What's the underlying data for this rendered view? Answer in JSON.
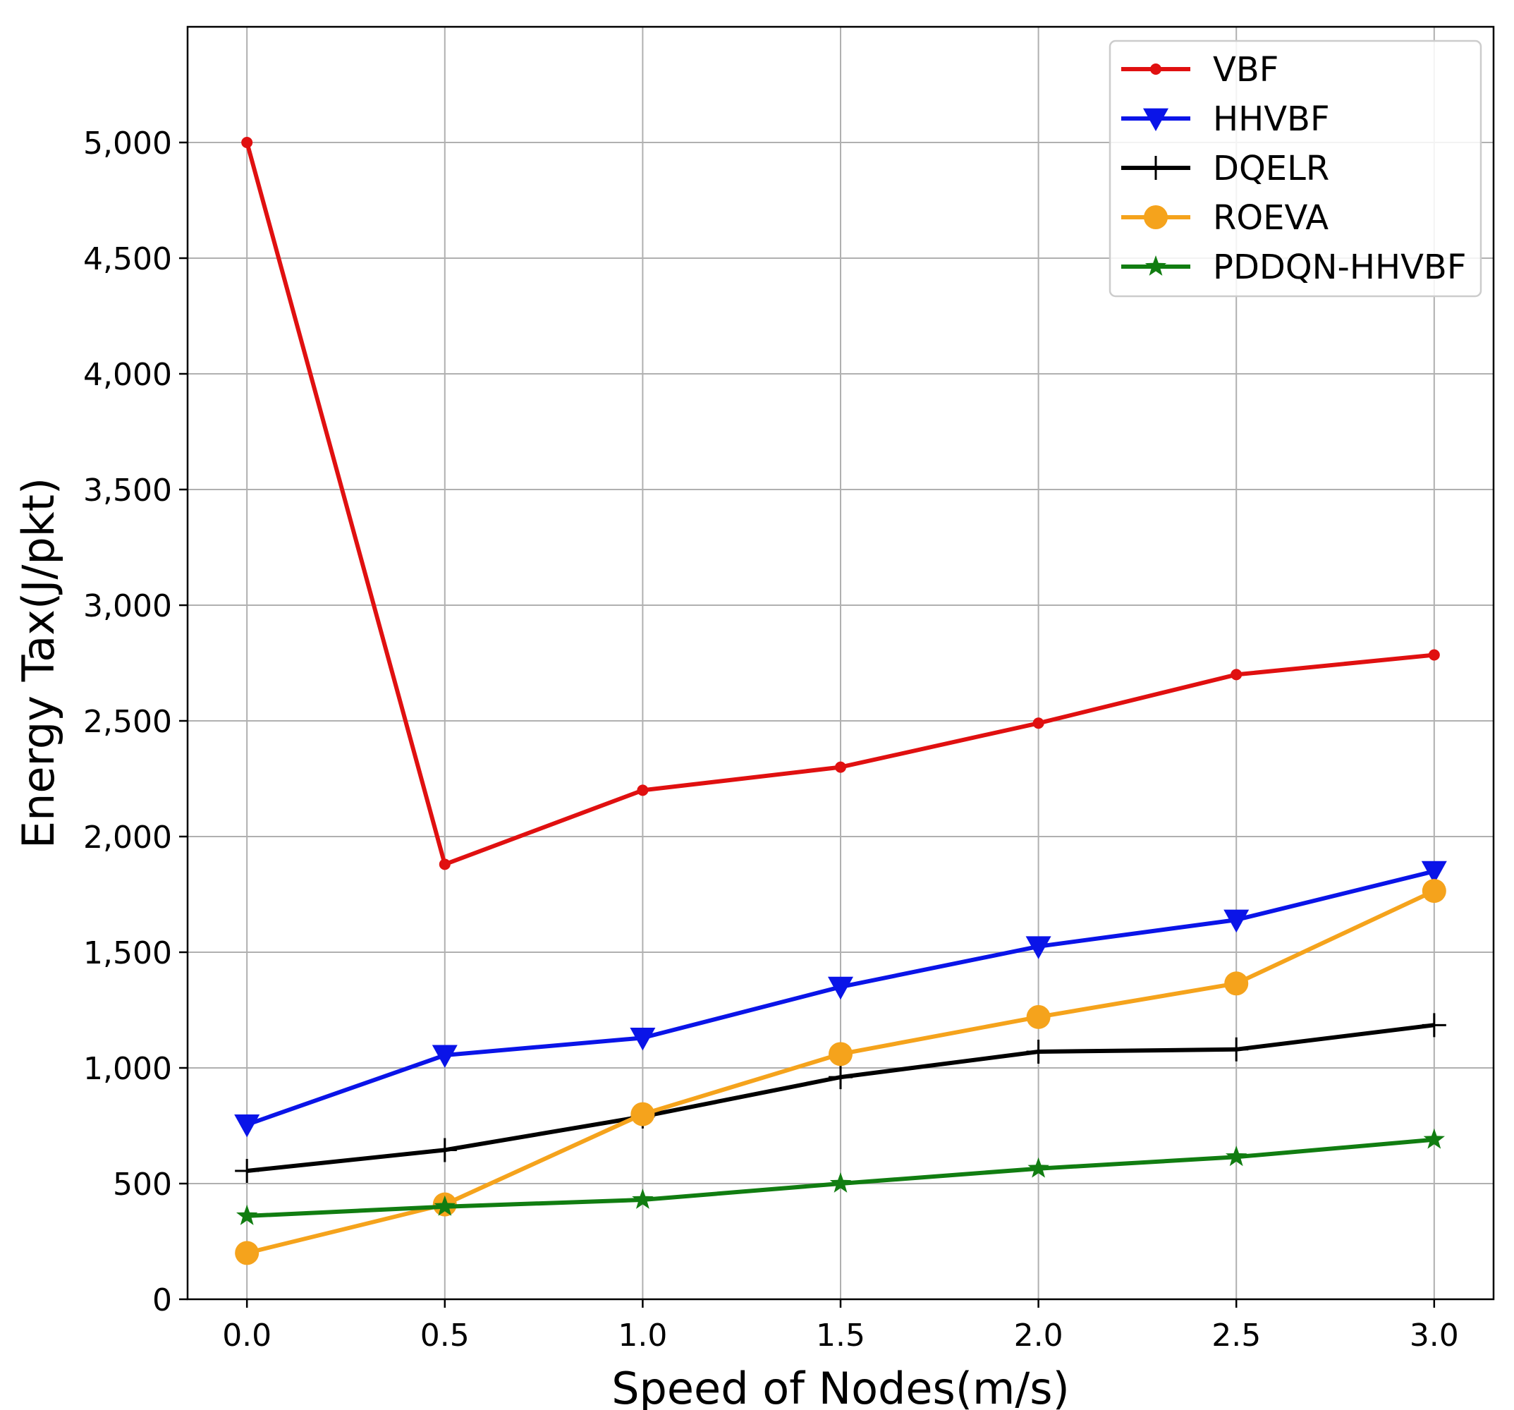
{
  "chart_data": {
    "type": "line",
    "title": "",
    "xlabel": "Speed of Nodes(m/s)",
    "ylabel": "Energy Tax(J/pkt)",
    "x": [
      0.0,
      0.5,
      1.0,
      1.5,
      2.0,
      2.5,
      3.0
    ],
    "xlim": [
      -0.15,
      3.15
    ],
    "ylim": [
      0,
      5500
    ],
    "xticks": [
      0.0,
      0.5,
      1.0,
      1.5,
      2.0,
      2.5,
      3.0
    ],
    "xtick_labels": [
      "0.0",
      "0.5",
      "1.0",
      "1.5",
      "2.0",
      "2.5",
      "3.0"
    ],
    "yticks": [
      0,
      500,
      1000,
      1500,
      2000,
      2500,
      3000,
      3500,
      4000,
      4500,
      5000
    ],
    "ytick_labels": [
      "0",
      "500",
      "1,000",
      "1,500",
      "2,000",
      "2,500",
      "3,000",
      "3,500",
      "4,000",
      "4,500",
      "5,000"
    ],
    "grid": true,
    "legend_position": "top-right",
    "series": [
      {
        "name": "VBF",
        "color": "#e01010",
        "marker": "dot",
        "values": [
          5000,
          1880,
          2200,
          2300,
          2490,
          2700,
          2785
        ]
      },
      {
        "name": "HHVBF",
        "color": "#0a14e8",
        "marker": "triangle-down",
        "values": [
          755,
          1055,
          1130,
          1350,
          1525,
          1640,
          1850
        ]
      },
      {
        "name": "DQELR",
        "color": "#000000",
        "marker": "plus",
        "values": [
          555,
          645,
          790,
          960,
          1070,
          1080,
          1185
        ]
      },
      {
        "name": "ROEVA",
        "color": "#f5a31c",
        "marker": "circle",
        "values": [
          200,
          410,
          800,
          1060,
          1220,
          1365,
          1765
        ]
      },
      {
        "name": "PDDQN-HHVBF",
        "color": "#117d11",
        "marker": "star",
        "values": [
          360,
          400,
          430,
          500,
          565,
          615,
          690
        ]
      }
    ]
  }
}
